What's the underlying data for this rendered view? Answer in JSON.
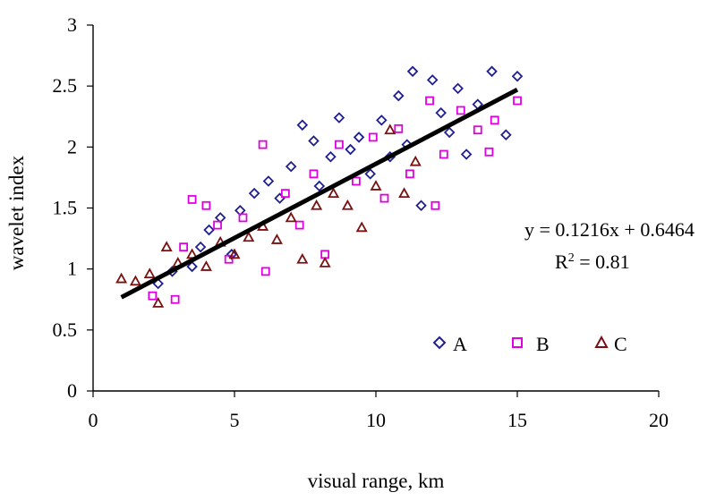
{
  "chart_data": {
    "type": "scatter",
    "title": "",
    "xlabel": "visual range, km",
    "ylabel": "wavelet index",
    "xlim": [
      0,
      20
    ],
    "ylim": [
      0,
      3
    ],
    "x_ticks": [
      0,
      5,
      10,
      15,
      20
    ],
    "y_ticks": [
      0,
      0.5,
      1,
      1.5,
      2,
      2.5,
      3
    ],
    "x_tick_labels": [
      "0",
      "5",
      "10",
      "15",
      "20"
    ],
    "y_tick_labels": [
      "0",
      "0.5",
      "1",
      "1.5",
      "2",
      "2.5",
      "3"
    ],
    "grid": false,
    "legend_position": "bottom-right inside plot",
    "series": [
      {
        "name": "A",
        "marker": "diamond",
        "color": "#1f1f8f",
        "points": [
          [
            2.3,
            0.88
          ],
          [
            2.8,
            0.98
          ],
          [
            3.5,
            1.02
          ],
          [
            3.8,
            1.18
          ],
          [
            4.1,
            1.32
          ],
          [
            4.5,
            1.42
          ],
          [
            4.9,
            1.12
          ],
          [
            5.2,
            1.48
          ],
          [
            5.7,
            1.62
          ],
          [
            6.2,
            1.72
          ],
          [
            6.6,
            1.58
          ],
          [
            7.0,
            1.84
          ],
          [
            7.4,
            2.18
          ],
          [
            7.8,
            2.05
          ],
          [
            8.0,
            1.68
          ],
          [
            8.4,
            1.92
          ],
          [
            8.7,
            2.24
          ],
          [
            9.1,
            1.98
          ],
          [
            9.4,
            2.08
          ],
          [
            9.8,
            1.78
          ],
          [
            10.2,
            2.22
          ],
          [
            10.5,
            1.92
          ],
          [
            10.8,
            2.42
          ],
          [
            11.1,
            2.02
          ],
          [
            11.3,
            2.62
          ],
          [
            11.6,
            1.52
          ],
          [
            12.0,
            2.55
          ],
          [
            12.3,
            2.28
          ],
          [
            12.6,
            2.12
          ],
          [
            12.9,
            2.48
          ],
          [
            13.2,
            1.94
          ],
          [
            13.6,
            2.35
          ],
          [
            14.1,
            2.62
          ],
          [
            14.6,
            2.1
          ],
          [
            15.0,
            2.58
          ]
        ]
      },
      {
        "name": "B",
        "marker": "square",
        "color": "#e100e1",
        "points": [
          [
            2.1,
            0.78
          ],
          [
            2.9,
            0.75
          ],
          [
            3.2,
            1.18
          ],
          [
            3.5,
            1.57
          ],
          [
            4.0,
            1.52
          ],
          [
            4.4,
            1.36
          ],
          [
            4.8,
            1.08
          ],
          [
            5.3,
            1.42
          ],
          [
            6.0,
            2.02
          ],
          [
            6.1,
            0.98
          ],
          [
            6.8,
            1.62
          ],
          [
            7.3,
            1.36
          ],
          [
            7.8,
            1.78
          ],
          [
            8.2,
            1.12
          ],
          [
            8.7,
            2.02
          ],
          [
            9.3,
            1.72
          ],
          [
            9.9,
            2.08
          ],
          [
            10.3,
            1.58
          ],
          [
            10.8,
            2.15
          ],
          [
            11.2,
            1.78
          ],
          [
            11.9,
            2.38
          ],
          [
            12.1,
            1.52
          ],
          [
            12.4,
            1.94
          ],
          [
            13.0,
            2.3
          ],
          [
            13.6,
            2.14
          ],
          [
            14.0,
            1.96
          ],
          [
            14.2,
            2.22
          ],
          [
            15.0,
            2.38
          ]
        ]
      },
      {
        "name": "C",
        "marker": "triangle",
        "color": "#7a1010",
        "points": [
          [
            1.0,
            0.92
          ],
          [
            1.5,
            0.9
          ],
          [
            2.0,
            0.96
          ],
          [
            2.3,
            0.72
          ],
          [
            2.6,
            1.18
          ],
          [
            3.0,
            1.05
          ],
          [
            3.5,
            1.12
          ],
          [
            4.0,
            1.02
          ],
          [
            4.5,
            1.22
          ],
          [
            5.0,
            1.12
          ],
          [
            5.5,
            1.26
          ],
          [
            6.0,
            1.35
          ],
          [
            6.5,
            1.24
          ],
          [
            7.0,
            1.42
          ],
          [
            7.4,
            1.08
          ],
          [
            7.9,
            1.52
          ],
          [
            8.2,
            1.05
          ],
          [
            8.5,
            1.62
          ],
          [
            9.0,
            1.52
          ],
          [
            9.5,
            1.34
          ],
          [
            10.0,
            1.68
          ],
          [
            10.5,
            2.14
          ],
          [
            11.0,
            1.62
          ],
          [
            11.4,
            1.88
          ]
        ]
      }
    ],
    "trendline": {
      "slope": 0.1216,
      "intercept": 0.6464,
      "x_range": [
        1,
        15
      ],
      "color": "#000000"
    },
    "annotations": {
      "equation": "y = 0.1216x + 0.6464",
      "r2_prefix": "R",
      "r2_superscript": "2",
      "r2_suffix": " = 0.81"
    }
  }
}
